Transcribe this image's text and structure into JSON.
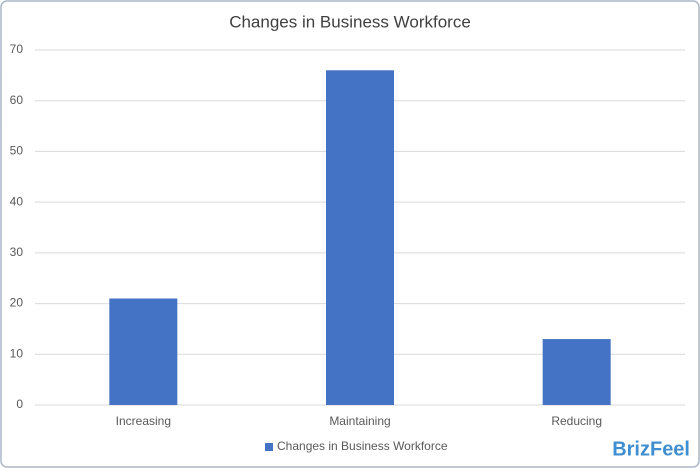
{
  "chart_data": {
    "type": "bar",
    "title": "Changes in Business Workforce",
    "categories": [
      "Increasing",
      "Maintaining",
      "Reducing"
    ],
    "series": [
      {
        "name": "Changes in Business Workforce",
        "color": "#4472c4",
        "values": [
          21,
          66,
          13
        ]
      }
    ],
    "ylim": [
      0,
      70
    ],
    "yticks": [
      0,
      10,
      20,
      30,
      40,
      50,
      60,
      70
    ],
    "grid": true,
    "legend": "bottom",
    "watermark": "BrizFeel"
  }
}
